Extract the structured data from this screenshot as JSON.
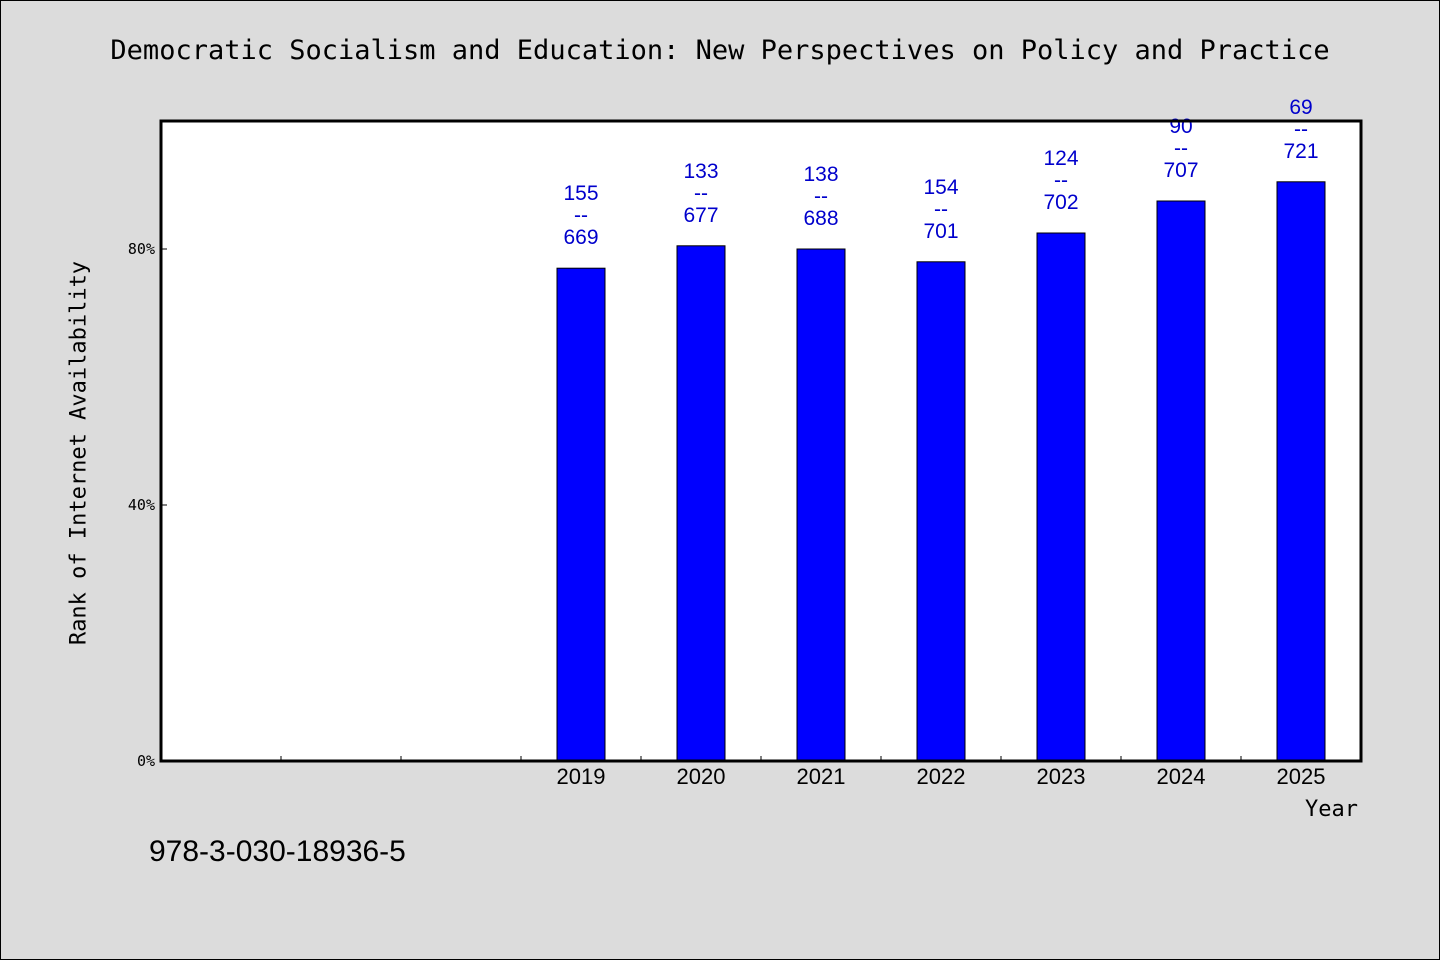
{
  "chart_data": {
    "type": "bar",
    "title": "Democratic Socialism and Education: New Perspectives on Policy and Practice",
    "xlabel": "Year",
    "ylabel": "Rank of Internet Availability",
    "categories": [
      "",
      "",
      "",
      "2019",
      "2020",
      "2021",
      "2022",
      "2023",
      "2024",
      "2025"
    ],
    "series": [
      {
        "values": [
          null,
          null,
          null,
          77,
          80.5,
          80,
          78,
          82.5,
          87.5,
          90.5
        ]
      }
    ],
    "data_labels": [
      null,
      null,
      null,
      {
        "top": "155",
        "mid": "--",
        "bottom": "669"
      },
      {
        "top": "133",
        "mid": "--",
        "bottom": "677"
      },
      {
        "top": "138",
        "mid": "--",
        "bottom": "688"
      },
      {
        "top": "154",
        "mid": "--",
        "bottom": "701"
      },
      {
        "top": "124",
        "mid": "--",
        "bottom": "702"
      },
      {
        "top": "90",
        "mid": "--",
        "bottom": "707"
      },
      {
        "top": "69",
        "mid": "--",
        "bottom": "721"
      }
    ],
    "y_ticks": [
      {
        "value": 0,
        "label": "0%"
      },
      {
        "value": 40,
        "label": "40%"
      },
      {
        "value": 80,
        "label": "80%"
      }
    ],
    "ylim": [
      0,
      100
    ],
    "grid": false,
    "bar_color": "#0000ff",
    "label_color": "#0000cc",
    "plot_background": "#ffffff",
    "page_background": "#dcdcdc"
  },
  "footnote": "978-3-030-18936-5"
}
